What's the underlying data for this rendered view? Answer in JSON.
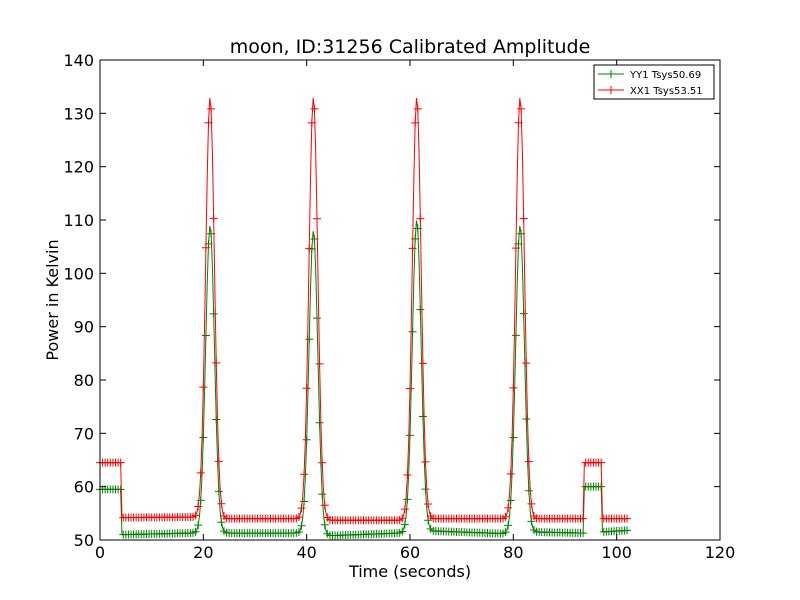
{
  "chart_data": {
    "type": "line",
    "title": "moon, ID:31256 Calibrated Amplitude",
    "xlabel": "Time (seconds)",
    "ylabel": "Power in Kelvin",
    "xlim": [
      0,
      120
    ],
    "ylim": [
      50,
      140
    ],
    "xticks": [
      "0",
      "20",
      "40",
      "60",
      "80",
      "100",
      "120"
    ],
    "yticks": [
      "50",
      "60",
      "70",
      "80",
      "90",
      "100",
      "110",
      "120",
      "130",
      "140"
    ],
    "grid": false,
    "legend_position": "top-right",
    "series": [
      {
        "name": "YY1 Tsys50.69",
        "color": "#008000",
        "marker": "+",
        "baseline": [
          [
            0,
            59.5
          ],
          [
            4,
            59.5
          ],
          [
            4.1,
            51
          ],
          [
            18,
            51.3
          ],
          [
            24,
            51.3
          ],
          [
            38,
            51.3
          ],
          [
            44,
            50.8
          ],
          [
            58,
            51.3
          ],
          [
            64,
            51.7
          ],
          [
            78,
            51.2
          ],
          [
            84,
            51.5
          ],
          [
            93.5,
            51.3
          ],
          [
            93.6,
            60
          ],
          [
            97,
            60
          ],
          [
            97.1,
            51.5
          ],
          [
            102,
            51.8
          ]
        ],
        "peaks": [
          {
            "center": 21.3,
            "amplitude": 109
          },
          {
            "center": 41.3,
            "amplitude": 108
          },
          {
            "center": 61.3,
            "amplitude": 110
          },
          {
            "center": 81.3,
            "amplitude": 109
          }
        ]
      },
      {
        "name": "XX1 Tsys53.51",
        "color": "#ff0000",
        "marker": "+",
        "baseline": [
          [
            0,
            64.5
          ],
          [
            4,
            64.5
          ],
          [
            4.1,
            54.2
          ],
          [
            18,
            54.3
          ],
          [
            24,
            54
          ],
          [
            38,
            54
          ],
          [
            44,
            53.7
          ],
          [
            58,
            53.7
          ],
          [
            64,
            54
          ],
          [
            78,
            54
          ],
          [
            84,
            54
          ],
          [
            93.5,
            54
          ],
          [
            93.6,
            64.5
          ],
          [
            97,
            64.5
          ],
          [
            97.1,
            54
          ],
          [
            102,
            54
          ]
        ],
        "peaks": [
          {
            "center": 21.3,
            "amplitude": 133
          },
          {
            "center": 41.3,
            "amplitude": 133
          },
          {
            "center": 61.3,
            "amplitude": 133
          },
          {
            "center": 81.3,
            "amplitude": 133
          }
        ]
      }
    ]
  }
}
